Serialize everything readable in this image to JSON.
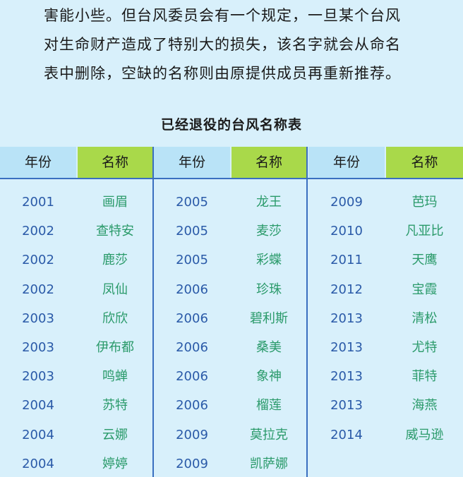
{
  "intro": {
    "lines": [
      "害能小些。但台风委员会有一个规定，一旦某个台风",
      "对生命财产造成了特别大的损失，该名字就会从命名",
      "表中删除，空缺的名称则由原提供成员再重新推荐。"
    ]
  },
  "table": {
    "title": "已经退役的台风名称表",
    "headers": {
      "year": "年份",
      "name": "名称"
    },
    "groups": [
      {
        "rows": [
          {
            "year": "2001",
            "name": "画眉"
          },
          {
            "year": "2002",
            "name": "查特安"
          },
          {
            "year": "2002",
            "name": "鹿莎"
          },
          {
            "year": "2002",
            "name": "凤仙"
          },
          {
            "year": "2003",
            "name": "欣欣"
          },
          {
            "year": "2003",
            "name": "伊布都"
          },
          {
            "year": "2003",
            "name": "鸣蝉"
          },
          {
            "year": "2004",
            "name": "苏特"
          },
          {
            "year": "2004",
            "name": "云娜"
          },
          {
            "year": "2004",
            "name": "婷婷"
          }
        ]
      },
      {
        "rows": [
          {
            "year": "2005",
            "name": "龙王"
          },
          {
            "year": "2005",
            "name": "麦莎"
          },
          {
            "year": "2005",
            "name": "彩蝶"
          },
          {
            "year": "2006",
            "name": "珍珠"
          },
          {
            "year": "2006",
            "name": "碧利斯"
          },
          {
            "year": "2006",
            "name": "桑美"
          },
          {
            "year": "2006",
            "name": "象神"
          },
          {
            "year": "2006",
            "name": "榴莲"
          },
          {
            "year": "2009",
            "name": "莫拉克"
          },
          {
            "year": "2009",
            "name": "凯萨娜"
          }
        ]
      },
      {
        "rows": [
          {
            "year": "2009",
            "name": "芭玛"
          },
          {
            "year": "2010",
            "name": "凡亚比"
          },
          {
            "year": "2011",
            "name": "天鹰"
          },
          {
            "year": "2012",
            "name": "宝霞"
          },
          {
            "year": "2013",
            "name": "清松"
          },
          {
            "year": "2013",
            "name": "尤特"
          },
          {
            "year": "2013",
            "name": "菲特"
          },
          {
            "year": "2013",
            "name": "海燕"
          },
          {
            "year": "2014",
            "name": "威马逊"
          }
        ]
      }
    ]
  }
}
